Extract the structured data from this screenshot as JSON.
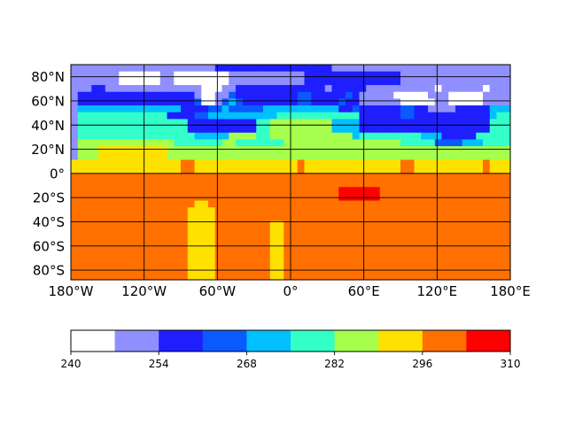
{
  "chart_data": {
    "type": "heatmap",
    "title": "",
    "xlabel": "",
    "ylabel": "",
    "x_ticks": [
      "180°W",
      "120°W",
      "60°W",
      "0°",
      "60°E",
      "120°E",
      "180°E"
    ],
    "y_ticks": [
      "80°N",
      "60°N",
      "40°N",
      "20°N",
      "0°",
      "20°S",
      "40°S",
      "60°S",
      "80°S"
    ],
    "xlim": [
      -180,
      180
    ],
    "ylim": [
      -88,
      90
    ],
    "grid": true,
    "colorbar": {
      "orientation": "horizontal",
      "placement": "bottom",
      "range": [
        240,
        310
      ],
      "tick_labels": [
        "240",
        "254",
        "268",
        "282",
        "296",
        "310"
      ],
      "levels": [
        240,
        247,
        254,
        261,
        268,
        275,
        282,
        289,
        296,
        303,
        310
      ],
      "colors": [
        "#ffffff",
        "#8f8fff",
        "#1e1eff",
        "#0a5aff",
        "#00c0ff",
        "#33ffc8",
        "#a6ff4c",
        "#ffe100",
        "#ff7000",
        "#ff0000"
      ]
    },
    "cell_size_deg": [
      5.625,
      5.625
    ],
    "row_lat_centers": [
      87.19,
      81.56,
      75.94,
      70.31,
      64.69,
      59.06,
      53.44,
      47.81,
      42.19,
      36.56,
      30.94,
      25.31,
      19.69,
      14.06,
      8.44,
      2.81,
      -2.81,
      -8.44,
      -14.06,
      -19.69,
      -25.31,
      -30.94,
      -36.56,
      -42.19,
      -47.81,
      -53.44,
      -59.06,
      -64.69,
      -70.31,
      -75.94,
      -81.56,
      -87.19
    ],
    "grid_levels": [
      "1111111111111111111112222222222222222211111111111111111111111111",
      "1111111000000110000000011111111111222222222222221111111111111111",
      "1111111000000110000000011111111111222222222222221111111111111111",
      "1112211111111111111000112222222222222122222111111111101111110111",
      "1222222222222222221001132222222223322222321111100000111000001111",
      "1222222222222222223001343222222223322223221111110000011000001111",
      "1444444444444444222233433333444444444442232222223322111122222444",
      "1555555555555522223344444444445555555555552222223322222222222455",
      "1555555555555555522222222225566666666644442222222222222222222555",
      "1555555555555555522222222225566666666644442222222222222222222555",
      "1555555555555555554444466665566666666666645555555554442222255555",
      "1666666666666665555555665555555666666666666666665555533334445555",
      "1666777777777766666666666666666666666666666666666666666666666666",
      "1666777777777766666666666666666666666666666666666666666666666666",
      "7777777777777777887777777777777778777777777777778877777777778777",
      "7777777777777777887777777777777778777777777777778877777777778777",
      "8888888888888888888888888888888888888888888888888888888888888888",
      "8888888888888888888888888888888888888888888888888888888888888888",
      "8888888888888888888888888888888888888889999998888888888888888888",
      "8888888888888888888888888888888888888889999998888888888888888888",
      "8888888888888888887788888888888888888888888888888888888888888888",
      "8888888888888888877778888888888888888888888888888888888888888888",
      "8888888888888888877778888888888888888888888888888888888888888888",
      "8888888888888888877778888888877888888888888888888888888888888888",
      "8888888888888888877778888888877888888888888888888888888888888888",
      "8888888888888888877778888888877888888888888888888888888888888888",
      "8888888888888888877778888888877888888888888888888888888888888888",
      "8888888888888888877778888888877888888888888888888888888888888888",
      "8888888888888888877778888888877888888888888888888888888888888888",
      "8888888888888888877778888888877888888888888888888888888888888888",
      "8888888888888888877778888888877888888888888888888888888888888888",
      "8888888888888888877778888888877888888888888888888888888888888888"
    ]
  }
}
